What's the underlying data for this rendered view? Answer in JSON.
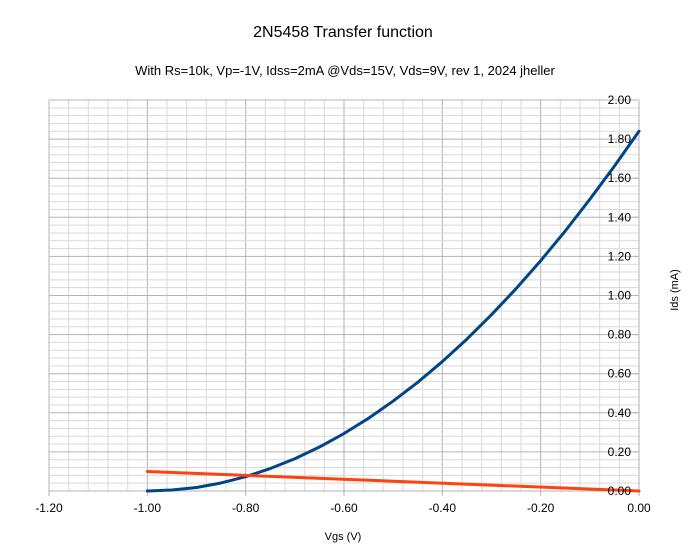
{
  "chart_data": {
    "type": "line",
    "title": "2N5458 Transfer function",
    "subtitle": "With Rs=10k, Vp=-1V, Idss=2mA @Vds=15V, Vds=9V, rev 1, 2024 jheller",
    "xlabel": "Vgs (V)",
    "ylabel": "Ids (mA)",
    "xlim": [
      -1.2,
      0.0
    ],
    "ylim": [
      0.0,
      2.0
    ],
    "x_ticks": [
      -1.2,
      -1.0,
      -0.8,
      -0.6,
      -0.4,
      -0.2,
      0.0
    ],
    "y_ticks": [
      0.0,
      0.2,
      0.4,
      0.6,
      0.8,
      1.0,
      1.2,
      1.4,
      1.6,
      1.8,
      2.0
    ],
    "x_tick_labels": [
      "-1.20",
      "-1.00",
      "-0.80",
      "-0.60",
      "-0.40",
      "-0.20",
      "0.00"
    ],
    "y_tick_labels": [
      "0.00",
      "0.20",
      "0.40",
      "0.60",
      "0.80",
      "1.00",
      "1.20",
      "1.40",
      "1.60",
      "1.80",
      "2.00"
    ],
    "y_axis_position": "right",
    "grid": true,
    "legend": "none",
    "series": [
      {
        "color": "#004586",
        "x": [
          -1.0,
          -0.95,
          -0.9,
          -0.85,
          -0.8,
          -0.75,
          -0.7,
          -0.65,
          -0.6,
          -0.55,
          -0.5,
          -0.45,
          -0.4,
          -0.35,
          -0.3,
          -0.25,
          -0.2,
          -0.15,
          -0.1,
          -0.05,
          0.0
        ],
        "values": [
          0.0,
          0.005,
          0.018,
          0.041,
          0.073,
          0.115,
          0.165,
          0.225,
          0.294,
          0.372,
          0.46,
          0.556,
          0.662,
          0.777,
          0.902,
          1.035,
          1.178,
          1.33,
          1.492,
          1.662,
          1.84
        ]
      },
      {
        "color": "#ff420e",
        "x": [
          -1.0,
          0.0
        ],
        "values": [
          0.1,
          0.0
        ]
      }
    ]
  }
}
